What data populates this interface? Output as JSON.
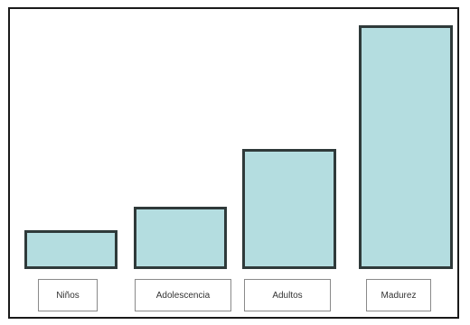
{
  "colors": {
    "bar_fill": "#b4dde0",
    "bar_border": "#2f3a3a",
    "frame_border": "#1a1a1a"
  },
  "chart_data": {
    "type": "bar",
    "categories": [
      "Niños",
      "Adolescencia",
      "Adultos",
      "Madurez"
    ],
    "values": [
      1,
      1.6,
      3.1,
      6.3
    ],
    "title": "",
    "xlabel": "",
    "ylabel": "",
    "grid": false,
    "legend": "none"
  }
}
